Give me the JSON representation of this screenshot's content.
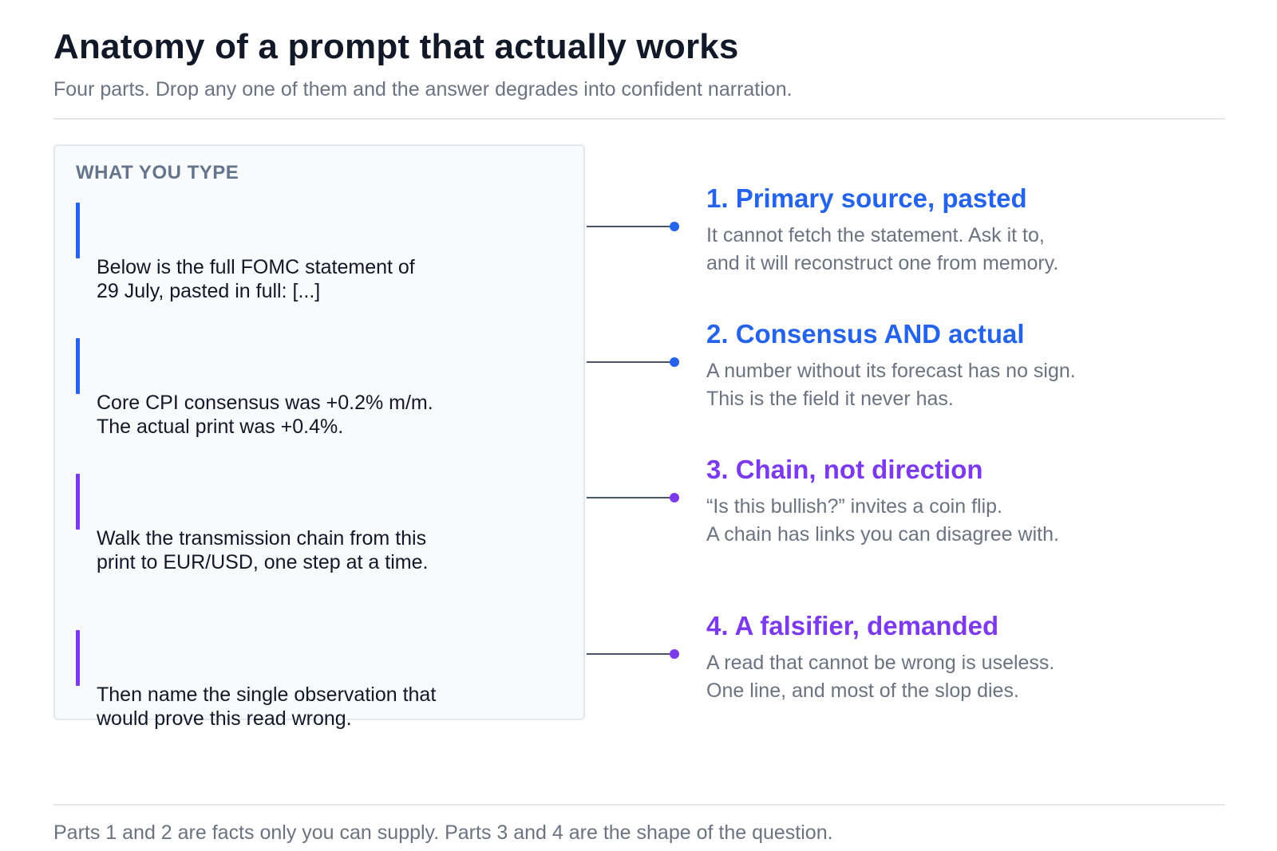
{
  "header": {
    "title": "Anatomy of a prompt that actually works",
    "subtitle": "Four parts. Drop any one of them and the answer degrades into confident narration."
  },
  "panel": {
    "label": "WHAT YOU TYPE",
    "snippets": [
      {
        "text": "Below is the full FOMC statement of\n29 July, pasted in full: [...]",
        "color": "#2563eb"
      },
      {
        "text": "Core CPI consensus was +0.2% m/m.\nThe actual print was +0.4%.",
        "color": "#2563eb"
      },
      {
        "text": "Walk the transmission chain from this\nprint to EUR/USD, one step at a time.",
        "color": "#7c3aed"
      },
      {
        "text": "Then name the single observation that\nwould prove this read wrong.",
        "color": "#7c3aed"
      }
    ]
  },
  "parts": [
    {
      "title": "1. Primary source, pasted",
      "description": "It cannot fetch the statement. Ask it to,\nand it will reconstruct one from memory.",
      "color": "#2563eb"
    },
    {
      "title": "2. Consensus AND actual",
      "description": "A number without its forecast has no sign.\nThis is the field it never has.",
      "color": "#2563eb"
    },
    {
      "title": "3. Chain, not direction",
      "description": "“Is this bullish?” invites a coin flip.\nA chain has links you can disagree with.",
      "color": "#7c3aed"
    },
    {
      "title": "4. A falsifier, demanded",
      "description": "A read that cannot be wrong is useless.\nOne line, and most of the slop dies.",
      "color": "#7c3aed"
    }
  ],
  "footnote": "Parts 1 and 2 are facts only you can supply. Parts 3 and 4 are the shape of the question."
}
